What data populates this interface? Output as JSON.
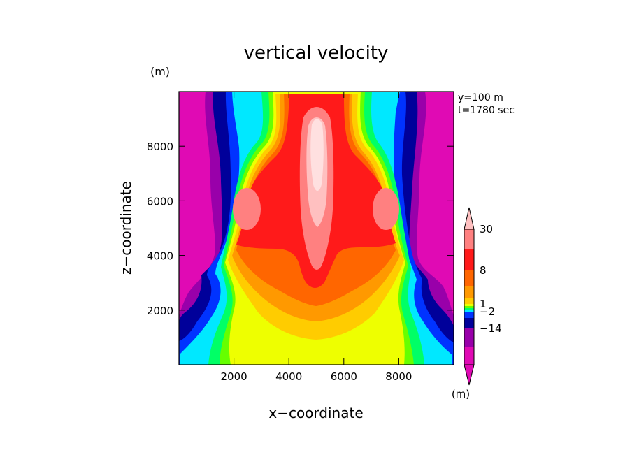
{
  "chart_data": {
    "type": "heatmap",
    "title": "vertical velocity",
    "xlabel": "x−coordinate",
    "ylabel": "z−coordinate",
    "y_unit": "(m)",
    "x_unit": "(m)",
    "annotation_lines": [
      "y=100 m",
      "t=1780 sec"
    ],
    "xlim": [
      0,
      10000
    ],
    "ylim": [
      0,
      10000
    ],
    "x_ticks": [
      "2000",
      "4000",
      "6000",
      "8000"
    ],
    "y_ticks": [
      "2000",
      "4000",
      "6000",
      "8000"
    ],
    "x_tick_values": [
      2000,
      4000,
      6000,
      8000
    ],
    "y_tick_values": [
      2000,
      4000,
      6000,
      8000
    ],
    "colorbar": {
      "colors": [
        "#e00ab4",
        "#9900aa",
        "#00009a",
        "#0033ff",
        "#00e8ff",
        "#00ff66",
        "#66ff00",
        "#eeff00",
        "#ffcc00",
        "#ff9900",
        "#ff6600",
        "#ff1a1a",
        "#ff8080",
        "#ffc0c0"
      ],
      "tick_labels": [
        {
          "label": "30",
          "level": 30
        },
        {
          "label": "8",
          "level": 8
        },
        {
          "label": "1",
          "level": 1
        },
        {
          "label": "−2",
          "level": -2
        },
        {
          "label": "−14",
          "level": -14
        }
      ]
    }
  }
}
